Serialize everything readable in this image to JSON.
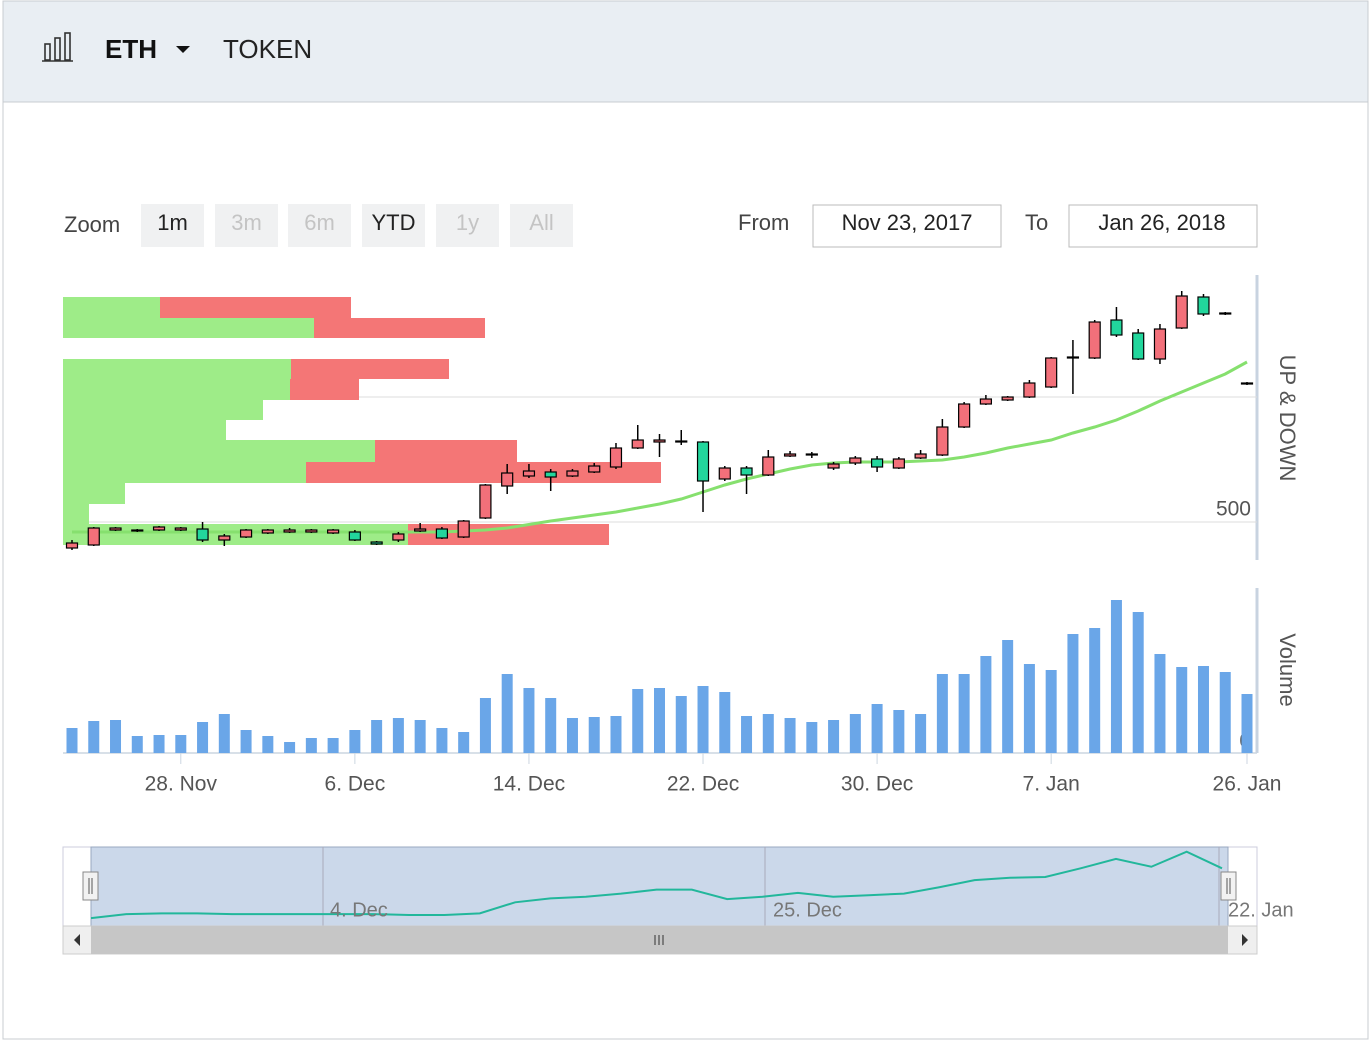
{
  "header": {
    "symbol": "ETH",
    "subtitle": "TOKEN"
  },
  "range_selector": {
    "label": "Zoom",
    "buttons": [
      "1m",
      "3m",
      "6m",
      "YTD",
      "1y",
      "All"
    ],
    "enabled": [
      true,
      false,
      false,
      true,
      false,
      false
    ],
    "from_label": "From",
    "from": "Nov 23, 2017",
    "to_label": "To",
    "to": "Jan 26, 2018"
  },
  "chart_data": {
    "type": "candlestick",
    "y_axis_title": "UP & DOWN",
    "categories": [
      null,
      null,
      null,
      null,
      null,
      "28. Nov",
      null,
      null,
      null,
      null,
      null,
      null,
      null,
      "6. Dec",
      null,
      null,
      null,
      null,
      null,
      null,
      null,
      "14. Dec",
      null,
      null,
      null,
      null,
      null,
      null,
      null,
      "22. Dec",
      null,
      null,
      null,
      null,
      null,
      null,
      null,
      "30. Dec",
      null,
      null,
      null,
      null,
      null,
      null,
      null,
      "7. Jan",
      null,
      null,
      null,
      null,
      null,
      null,
      null,
      null,
      "26. Jan"
    ],
    "ylim": [
      348,
      1488
    ],
    "yticks": [
      500,
      {
        "value": 1000,
        "label": null
      }
    ],
    "grid": true,
    "up_color": "#f2707a",
    "down_color": "#22d69c",
    "open": [
      396,
      408,
      468,
      464,
      468,
      468,
      472,
      428,
      440,
      456,
      460,
      460,
      456,
      460,
      420,
      428,
      464,
      472,
      440,
      516,
      644,
      684,
      700,
      684,
      700,
      720,
      796,
      820,
      820,
      820,
      672,
      716,
      688,
      764,
      768,
      716,
      736,
      752,
      716,
      756,
      768,
      880,
      972,
      988,
      1000,
      1040,
      1156,
      1156,
      1308,
      1256,
      1152,
      1276,
      1400,
      1332,
      1052
    ],
    "high": [
      428,
      480,
      480,
      472,
      484,
      480,
      500,
      452,
      472,
      472,
      476,
      472,
      472,
      468,
      424,
      460,
      496,
      480,
      508,
      652,
      732,
      732,
      712,
      712,
      736,
      816,
      888,
      852,
      868,
      824,
      724,
      724,
      788,
      784,
      780,
      740,
      764,
      764,
      760,
      788,
      912,
      980,
      1008,
      1004,
      1068,
      1160,
      1228,
      1308,
      1360,
      1272,
      1292,
      1424,
      1412,
      1340,
      1060
    ],
    "low": [
      388,
      404,
      464,
      460,
      464,
      464,
      420,
      404,
      436,
      452,
      456,
      456,
      452,
      424,
      408,
      420,
      460,
      432,
      436,
      512,
      612,
      676,
      624,
      680,
      696,
      712,
      792,
      760,
      808,
      540,
      664,
      612,
      684,
      760,
      756,
      708,
      728,
      700,
      712,
      752,
      764,
      876,
      968,
      984,
      996,
      1036,
      1012,
      1152,
      1240,
      1148,
      1132,
      1272,
      1324,
      1328,
      1048
    ],
    "close": [
      416,
      476,
      476,
      468,
      480,
      476,
      428,
      444,
      468,
      468,
      468,
      468,
      468,
      428,
      412,
      452,
      472,
      436,
      504,
      648,
      696,
      704,
      680,
      704,
      724,
      796,
      828,
      828,
      824,
      664,
      716,
      688,
      760,
      772,
      772,
      732,
      756,
      720,
      752,
      772,
      880,
      972,
      992,
      1000,
      1056,
      1156,
      1160,
      1300,
      1248,
      1152,
      1272,
      1404,
      1332,
      1336,
      1056
    ],
    "sma": {
      "color": "#86e06e",
      "values": [
        460,
        460,
        460,
        460,
        460,
        460,
        460,
        460,
        460,
        460,
        460,
        460,
        460,
        460,
        460,
        460,
        460,
        460,
        464,
        468,
        476,
        490,
        504,
        516,
        528,
        540,
        556,
        572,
        592,
        620,
        648,
        672,
        692,
        712,
        728,
        736,
        740,
        740,
        740,
        744,
        748,
        760,
        776,
        796,
        812,
        828,
        856,
        880,
        908,
        944,
        984,
        1020,
        1056,
        1092,
        1140
      ]
    },
    "volume_by_price": {
      "bins": [
        408,
        492,
        572,
        656,
        740,
        828,
        908,
        988,
        1072,
        1152,
        1236,
        1316,
        1400
      ],
      "up": [
        345,
        26,
        62,
        243,
        312,
        163,
        200,
        227,
        228,
        0,
        251,
        97
      ],
      "down": [
        201,
        0,
        0,
        355,
        142,
        0,
        0,
        69,
        158,
        0,
        171,
        191
      ],
      "xlim": [
        0,
        1194
      ],
      "up_color": "#9eec88",
      "down_color": "#f47676"
    },
    "volume": {
      "title": "Volume",
      "color": "#6aa6e8",
      "ylim": [
        0,
        168
      ],
      "yticks": [
        0
      ],
      "values": [
        25,
        32,
        33,
        17,
        18,
        18,
        31,
        39,
        23,
        17,
        11,
        15,
        15,
        23,
        33,
        35,
        33,
        25,
        21,
        55,
        79,
        65,
        55,
        35,
        36,
        37,
        64,
        65,
        57,
        67,
        61,
        37,
        39,
        35,
        31,
        33,
        39,
        49,
        43,
        39,
        79,
        79,
        97,
        113,
        89,
        83,
        119,
        125,
        153,
        141,
        99,
        86,
        87,
        81,
        59
      ]
    }
  },
  "navigator": {
    "labels": [
      "4. Dec",
      "25. Dec",
      "22. Jan"
    ],
    "color": "#22b79b",
    "ylim": [
      0,
      100
    ],
    "values": [
      10,
      15,
      16,
      16,
      15,
      15,
      15,
      15,
      15,
      14,
      14,
      16,
      30,
      35,
      37,
      41,
      46,
      46,
      34,
      37,
      42,
      37,
      39,
      41,
      49,
      58,
      61,
      62,
      73,
      85,
      75,
      94,
      73
    ]
  }
}
